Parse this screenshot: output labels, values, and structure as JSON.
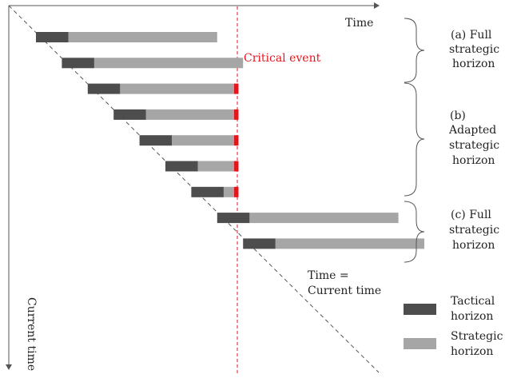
{
  "labels": {
    "time_axis": "Time",
    "current_time_axis": "Current time",
    "critical_event": "Critical event",
    "diagonal_line1": "Time =",
    "diagonal_line2": "Current time"
  },
  "groups": [
    {
      "lines": [
        "(a) Full",
        "strategic",
        "horizon"
      ]
    },
    {
      "lines": [
        "(b)",
        "Adapted",
        "strategic",
        "horizon"
      ]
    },
    {
      "lines": [
        "(c) Full",
        "strategic",
        "horizon"
      ]
    }
  ],
  "legend": {
    "tactical_line1": "Tactical",
    "tactical_line2": "horizon",
    "strategic_line1": "Strategic",
    "strategic_line2": "horizon"
  },
  "colors": {
    "tactical": "#4d4d4d",
    "strategic": "#a6a6a6",
    "critical": "#e8141c",
    "axis": "#555555"
  },
  "horizons": [
    {
      "tactical_end": 1.0,
      "strategic_end": 4.6,
      "clipped": false
    },
    {
      "tactical_end": 1.0,
      "strategic_end": 4.6,
      "clipped": false
    },
    {
      "tactical_end": 1.0,
      "strategic_end": 3.5,
      "clipped": true
    },
    {
      "tactical_end": 1.0,
      "strategic_end": 2.7,
      "clipped": true
    },
    {
      "tactical_end": 1.0,
      "strategic_end": 1.9,
      "clipped": true
    },
    {
      "tactical_end": 1.0,
      "strategic_end": 1.1,
      "clipped": true
    },
    {
      "tactical_end": 1.0,
      "strategic_end": 0.3,
      "clipped": true
    },
    {
      "tactical_end": 1.0,
      "strategic_end": 4.6,
      "clipped": false
    },
    {
      "tactical_end": 1.0,
      "strategic_end": 4.6,
      "clipped": false
    }
  ]
}
